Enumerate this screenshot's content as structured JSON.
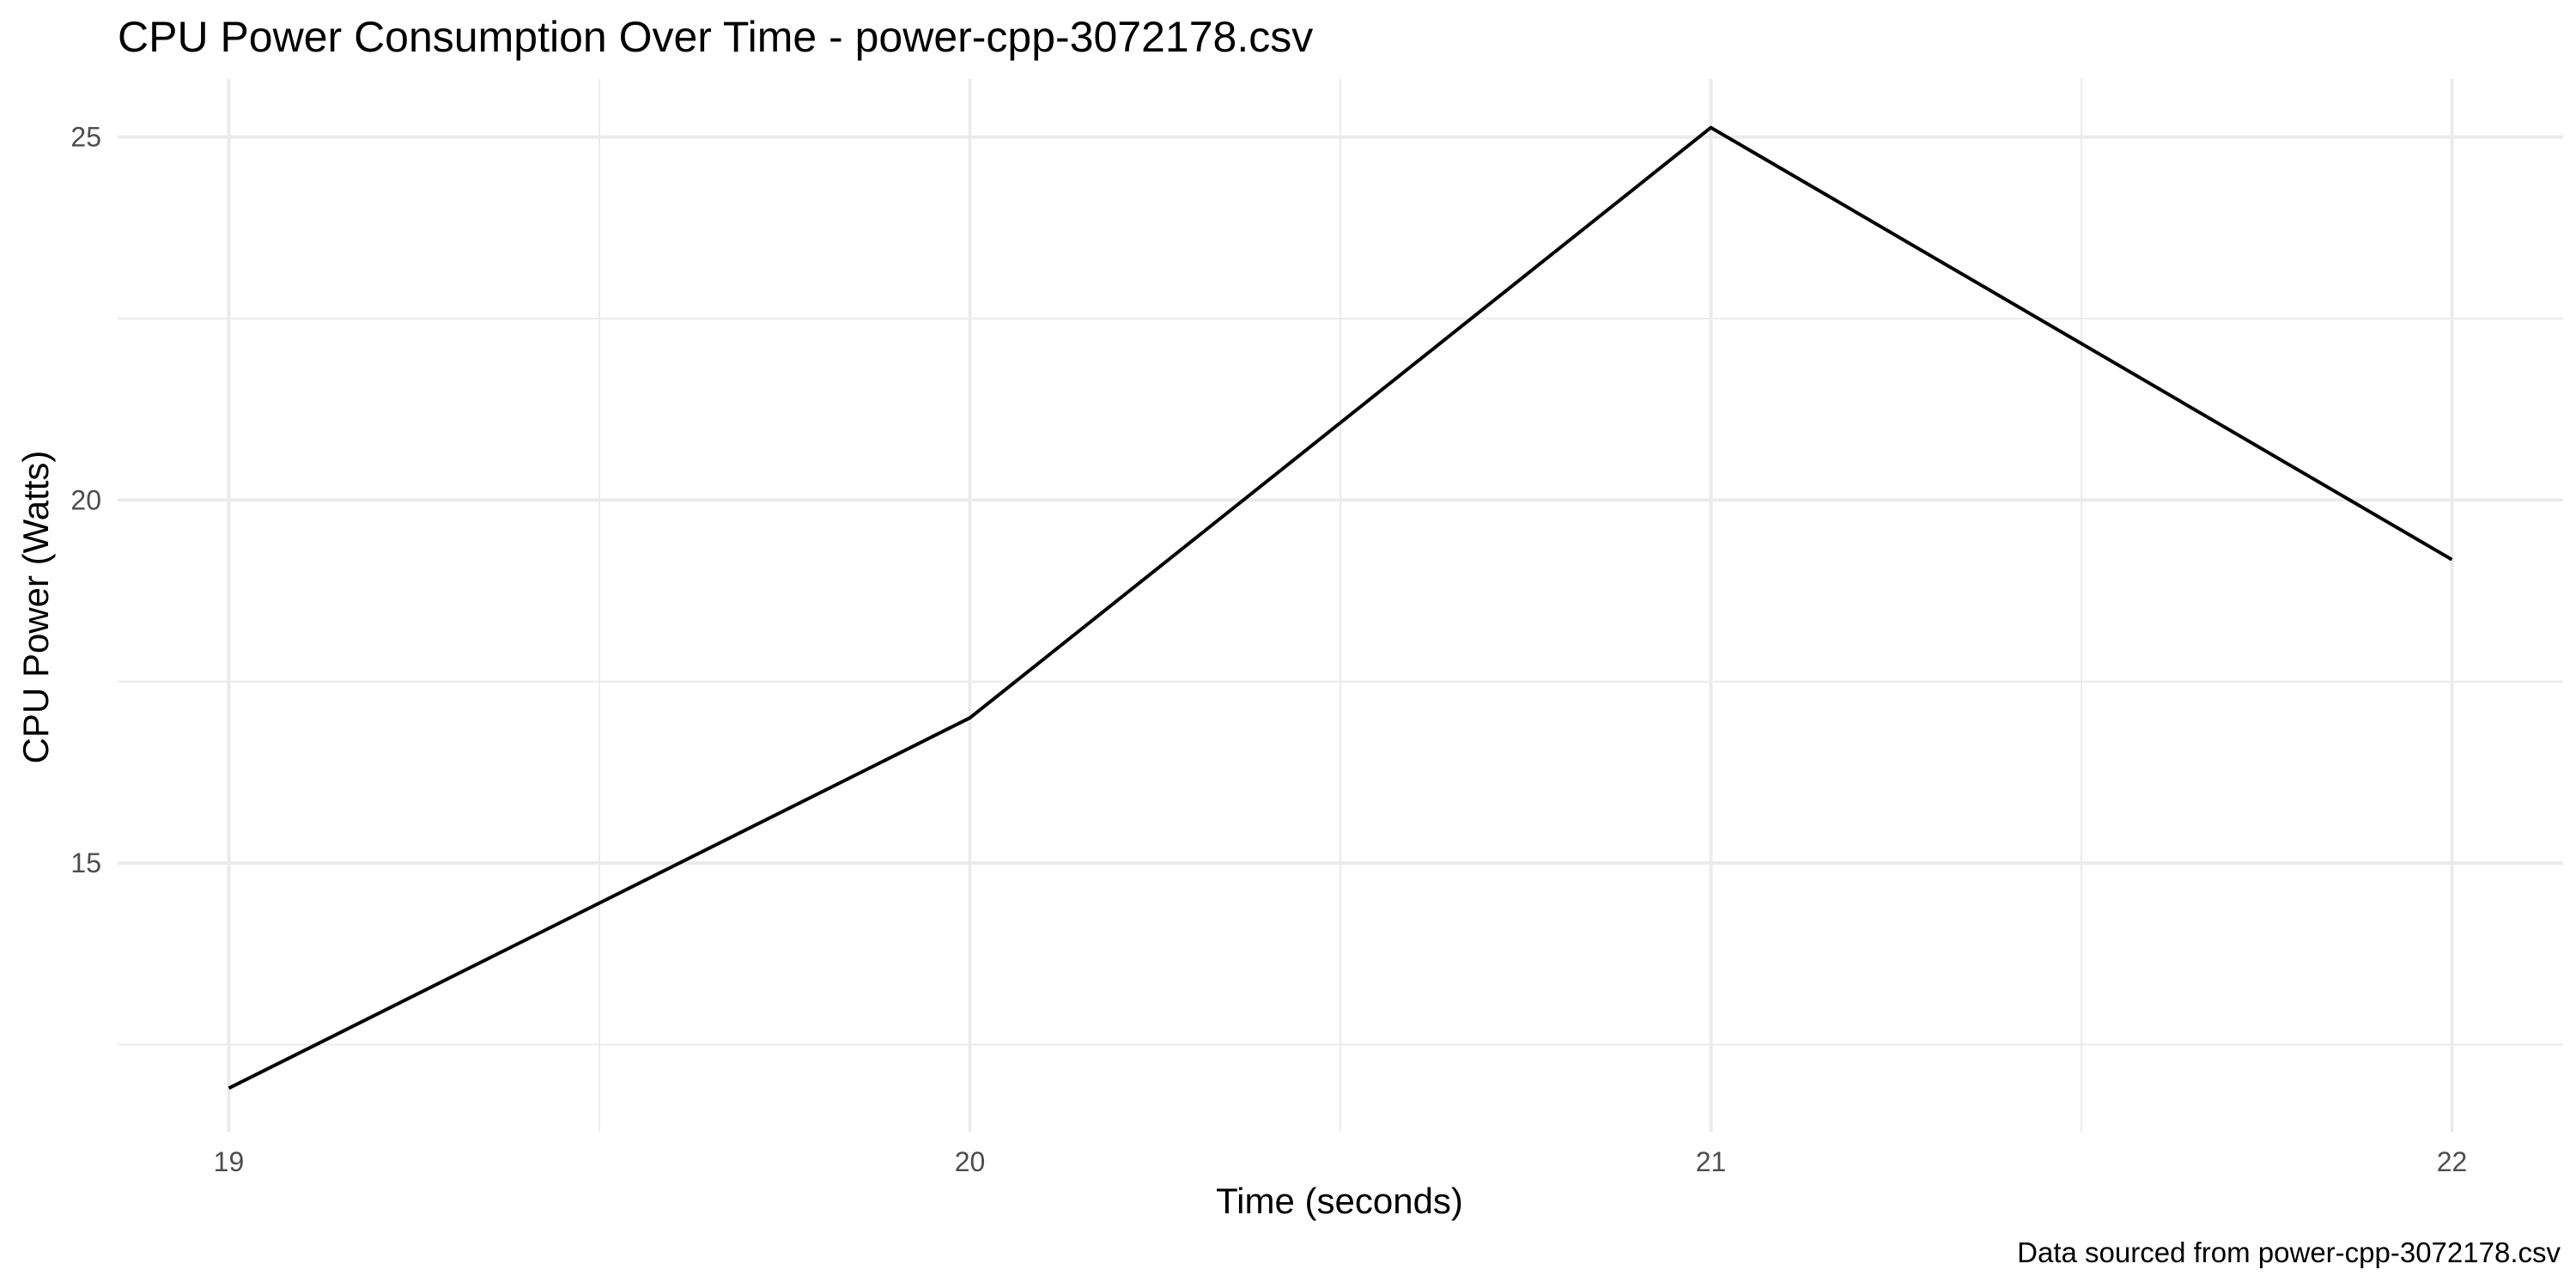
{
  "chart_data": {
    "type": "line",
    "title": "CPU Power Consumption Over Time - power-cpp-3072178.csv",
    "xlabel": "Time (seconds)",
    "ylabel": "CPU Power (Watts)",
    "caption": "Data sourced from power-cpp-3072178.csv",
    "x": [
      19,
      20,
      21,
      22
    ],
    "y": [
      11.9,
      17.0,
      25.13,
      19.18
    ],
    "x_ticks": [
      19,
      20,
      21,
      22
    ],
    "y_ticks": [
      15,
      20,
      25
    ],
    "xlim": [
      18.85,
      22.15
    ],
    "ylim": [
      11.3,
      25.8
    ],
    "grid": true,
    "line_color": "#000000",
    "grid_color": "#ebebeb",
    "background": "#ffffff",
    "legend": "none"
  }
}
